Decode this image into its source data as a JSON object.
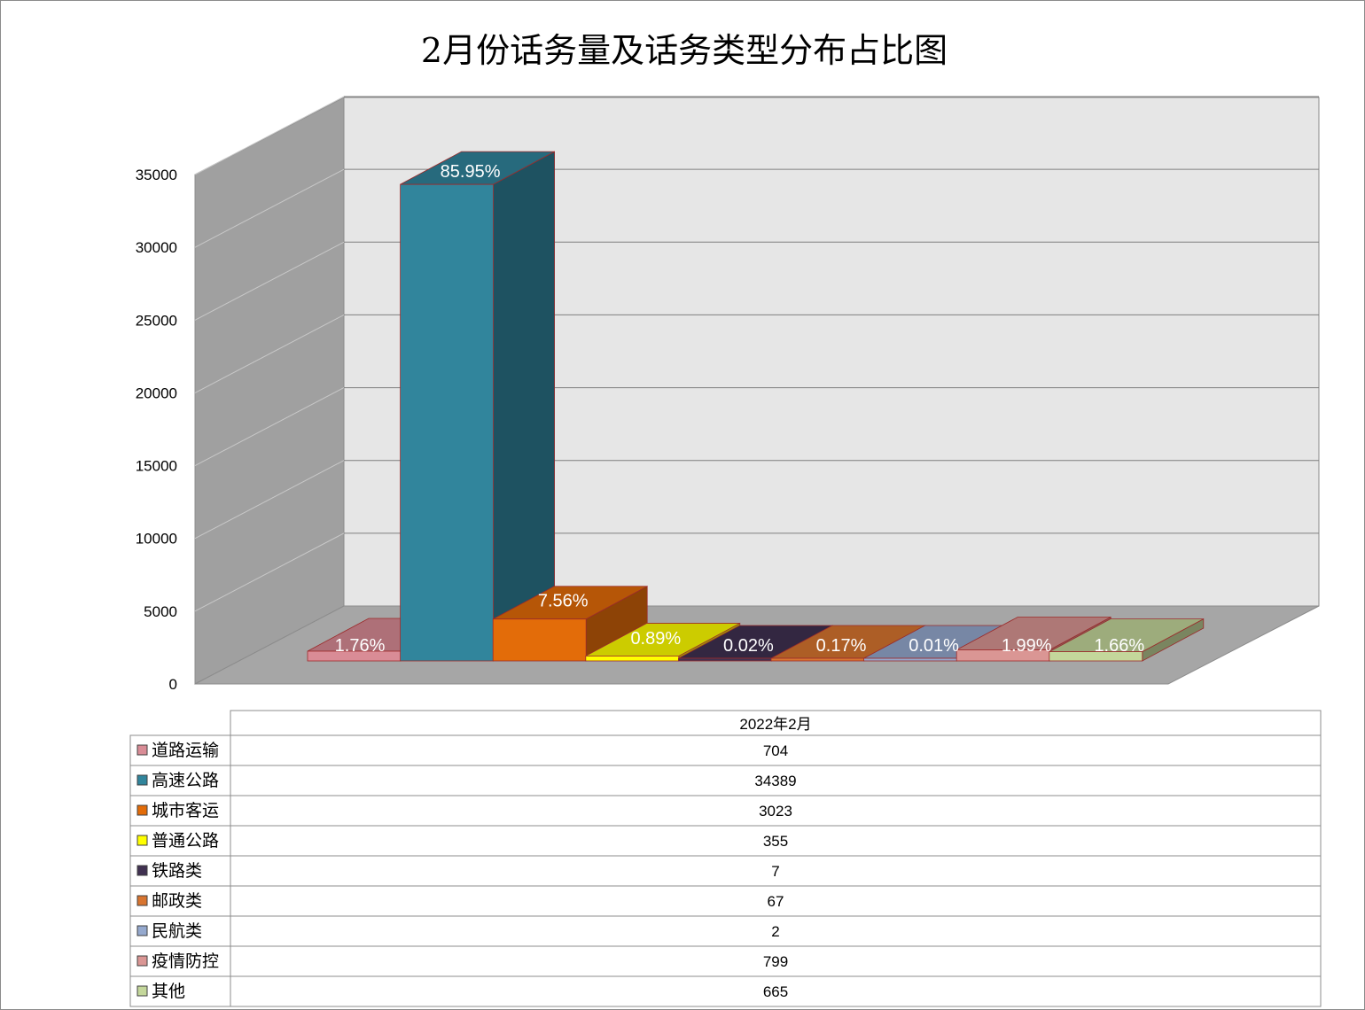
{
  "chart_data": {
    "type": "bar",
    "title": "2月份话务量及话务类型分布占比图",
    "ylim": [
      0,
      35000
    ],
    "yticks": [
      "0",
      "5000",
      "10000",
      "15000",
      "20000",
      "25000",
      "30000",
      "35000"
    ],
    "grid": true,
    "three_d": true,
    "legend": "data-table",
    "table_header": "2022年2月",
    "series": [
      {
        "name": "道路运输",
        "value": 704,
        "pct": "1.76%",
        "color": "#D98C96"
      },
      {
        "name": "高速公路",
        "value": 34389,
        "pct": "85.95%",
        "color": "#31859C"
      },
      {
        "name": "城市客运",
        "value": 3023,
        "pct": "7.56%",
        "color": "#E36C09"
      },
      {
        "name": "普通公路",
        "value": 355,
        "pct": "0.89%",
        "color": "#FFFF00"
      },
      {
        "name": "铁路类",
        "value": 7,
        "pct": "0.02%",
        "color": "#403151"
      },
      {
        "name": "邮政类",
        "value": 67,
        "pct": "0.17%",
        "color": "#D87530"
      },
      {
        "name": "民航类",
        "value": 2,
        "pct": "0.01%",
        "color": "#95A9CE"
      },
      {
        "name": "疫情防控",
        "value": 799,
        "pct": "1.99%",
        "color": "#DA9694"
      },
      {
        "name": "其他",
        "value": 665,
        "pct": "1.66%",
        "color": "#C4D79B"
      }
    ]
  }
}
